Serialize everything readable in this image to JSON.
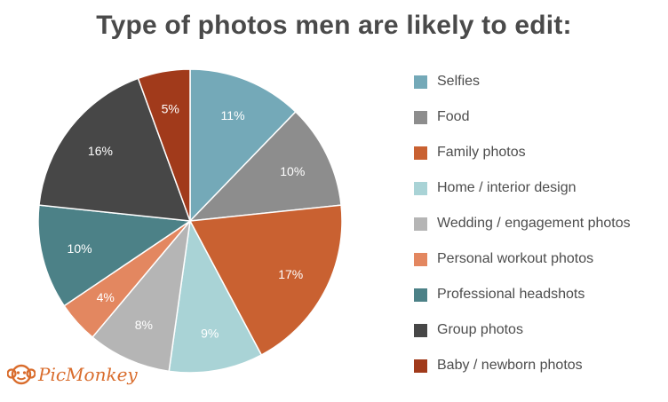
{
  "title": "Type of photos men are likely to edit:",
  "logo_text": "PicMonkey",
  "chart_data": {
    "type": "pie",
    "title": "Type of photos men are likely to edit:",
    "start_angle_deg": 0,
    "direction": "clockwise",
    "legend_position": "right",
    "slices": [
      {
        "label": "Selfies",
        "value": 11,
        "display": "11%",
        "color": "#74a9b8"
      },
      {
        "label": "Food",
        "value": 10,
        "display": "10%",
        "color": "#8d8d8d"
      },
      {
        "label": "Family photos",
        "value": 17,
        "display": "17%",
        "color": "#c96131"
      },
      {
        "label": "Home / interior design",
        "value": 9,
        "display": "9%",
        "color": "#a9d3d6"
      },
      {
        "label": "Wedding / engagement photos",
        "value": 8,
        "display": "8%",
        "color": "#b5b5b5"
      },
      {
        "label": "Personal workout photos",
        "value": 4,
        "display": "4%",
        "color": "#e38760"
      },
      {
        "label": "Professional headshots",
        "value": 10,
        "display": "10%",
        "color": "#4c8187"
      },
      {
        "label": "Group photos",
        "value": 16,
        "display": "16%",
        "color": "#474747"
      },
      {
        "label": "Baby / newborn photos",
        "value": 5,
        "display": "5%",
        "color": "#a13a1b"
      }
    ]
  }
}
